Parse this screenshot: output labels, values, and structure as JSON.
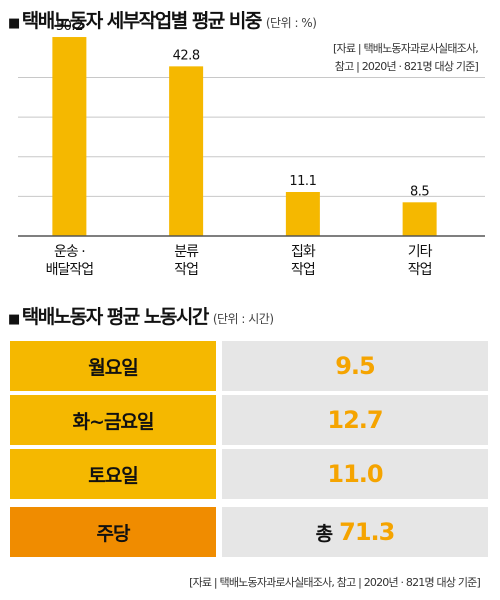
{
  "section1": {
    "title": "택배노동자 세부작업별 평균 비중",
    "unit": "(단위 : %)",
    "source_line1": "[자료 | 택배노동자과로사실태조사,",
    "source_line2": "참고 | 2020년 · 821명 대상 기준]"
  },
  "chart_data": {
    "type": "bar",
    "categories": [
      [
        "운송 ·",
        "배달작업"
      ],
      [
        "분류",
        "작업"
      ],
      [
        "집화",
        "작업"
      ],
      [
        "기타",
        "작업"
      ]
    ],
    "values": [
      50.2,
      42.8,
      11.1,
      8.5
    ],
    "value_labels": [
      "50.2",
      "42.8",
      "11.1",
      "8.5"
    ],
    "ylim": [
      0,
      55
    ],
    "grid": true,
    "colors": {
      "bar": "#f5b800",
      "grid": "#c8c8c8",
      "axis": "#555555"
    }
  },
  "section2": {
    "title": "택배노동자 평균 노동시간",
    "unit": "(단위 : 시간)",
    "rows": [
      {
        "label": "월요일",
        "prefix": "",
        "value": "9.5"
      },
      {
        "label": "화~금요일",
        "prefix": "",
        "value": "12.7"
      },
      {
        "label": "토요일",
        "prefix": "",
        "value": "11.0"
      },
      {
        "label": "주당",
        "prefix": "총",
        "value": "71.3"
      }
    ],
    "source": "[자료 | 택배노동자과로사실태조사, 참고 | 2020년 · 821명 대상 기준]",
    "colors": {
      "label_bg": "#f5b800",
      "total_bg": "#f08c00",
      "value_bg": "#e6e6e6",
      "value_text": "#f5a400"
    }
  }
}
